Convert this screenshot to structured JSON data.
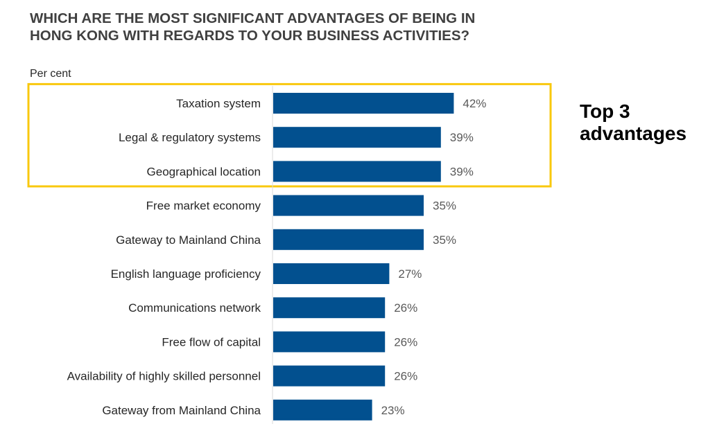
{
  "title_lines": [
    "WHICH ARE THE MOST SIGNIFICANT ADVANTAGES OF BEING IN",
    "HONG KONG WITH REGARDS TO YOUR BUSINESS ACTIVITIES?"
  ],
  "callout": {
    "line1": "Top 3",
    "line2": "advantages"
  },
  "colors": {
    "bar": "#02508f",
    "highlight": "#f9c80e",
    "label": "#262626",
    "value": "#595959",
    "title": "#404040"
  },
  "chart_data": {
    "type": "bar",
    "orientation": "horizontal",
    "title": "WHICH ARE THE MOST SIGNIFICANT ADVANTAGES OF BEING IN HONG KONG WITH REGARDS TO YOUR BUSINESS ACTIVITIES?",
    "unit_label": "Per cent",
    "categories": [
      "Taxation system",
      "Legal & regulatory systems",
      "Geographical location",
      "Free market economy",
      "Gateway to Mainland China",
      "English language proficiency",
      "Communications network",
      "Free flow of capital",
      "Availability of highly skilled personnel",
      "Gateway from Mainland China"
    ],
    "values": [
      42,
      39,
      39,
      35,
      35,
      27,
      26,
      26,
      26,
      23
    ],
    "value_suffix": "%",
    "highlighted_count": 3,
    "xlim": [
      0,
      100
    ],
    "grid": false,
    "legend": "none"
  }
}
